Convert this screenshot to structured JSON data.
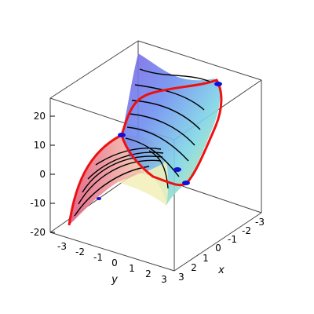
{
  "chart_data": {
    "type": "surface3d",
    "title": "",
    "axes": {
      "x": {
        "label": "x",
        "ticks": [
          "3",
          "2",
          "1",
          "0",
          "-1",
          "-2",
          "-3"
        ]
      },
      "y": {
        "label": "y",
        "ticks": [
          "-3",
          "-2",
          "-1",
          "0",
          "1",
          "2",
          "3"
        ]
      },
      "z": {
        "ticks": [
          "20",
          "10",
          "0",
          "-10",
          "-20"
        ]
      }
    },
    "colors": {
      "surface_pink": "#e05a7e",
      "surface_violet": "#7d63e3",
      "surface_blue": "#6f8ff0",
      "surface_cyan": "#7fd6e6",
      "surface_green": "#c2eb96",
      "surface_yellow": "#f5f1a3",
      "surface_salmon": "#f2b1a8",
      "contour_lines": "#000000",
      "boundary_curve": "#ee1111",
      "critical_points": "#1010d8",
      "box_lines": "#444444"
    },
    "grid": false,
    "legend": "none"
  }
}
